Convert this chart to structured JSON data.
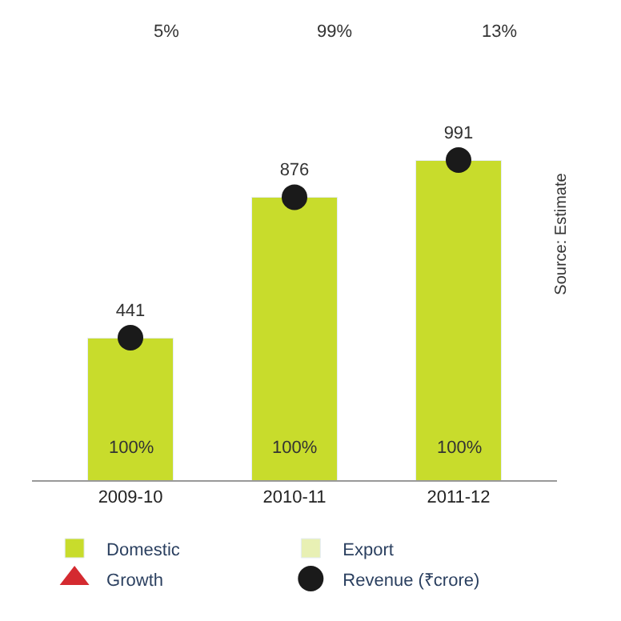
{
  "chart_data": {
    "type": "bar",
    "categories": [
      "2009-10",
      "2010-11",
      "2011-12"
    ],
    "stacked": true,
    "legend": "bottom",
    "tick_labels": "x",
    "series": [
      {
        "name": "Domestic",
        "color": "#c8dc2c",
        "values": [
          441,
          876,
          991
        ]
      },
      {
        "name": "Export",
        "color": "#e8f0b4",
        "values": [
          null,
          null,
          null
        ]
      },
      {
        "name": "Growth",
        "type": "scatter",
        "marker": "triangle",
        "color": "#d42a30",
        "values": [
          null,
          null,
          null
        ]
      },
      {
        "name": "Revenue (₹crore)",
        "type": "scatter",
        "marker": "circle",
        "color": "#1a1a1a",
        "values": [
          441,
          876,
          991
        ],
        "value_labels": [
          "441",
          "876",
          "991"
        ]
      }
    ],
    "annotations": [
      "5%",
      "99%",
      "13%",
      "100%",
      "100%",
      "100%",
      "Source: Estimate"
    ]
  }
}
